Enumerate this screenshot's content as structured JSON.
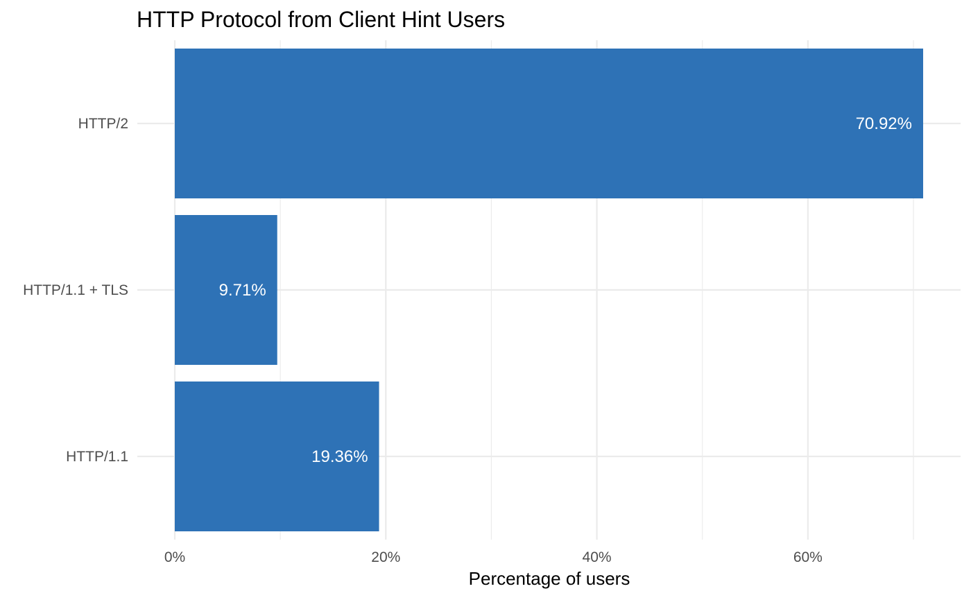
{
  "chart_data": {
    "type": "bar",
    "orientation": "horizontal",
    "title": "HTTP Protocol from Client Hint Users",
    "xlabel": "Percentage of users",
    "ylabel": "",
    "categories": [
      "HTTP/2",
      "HTTP/1.1 + TLS",
      "HTTP/1.1"
    ],
    "values": [
      70.92,
      9.71,
      19.36
    ],
    "data_labels": [
      "70.92%",
      "9.71%",
      "19.36%"
    ],
    "xlim": [
      0,
      74
    ],
    "x_ticks": [
      0,
      20,
      40,
      60
    ],
    "x_tick_labels": [
      "0%",
      "20%",
      "40%",
      "60%"
    ],
    "grid": true,
    "bar_color": "#2e72b6"
  }
}
